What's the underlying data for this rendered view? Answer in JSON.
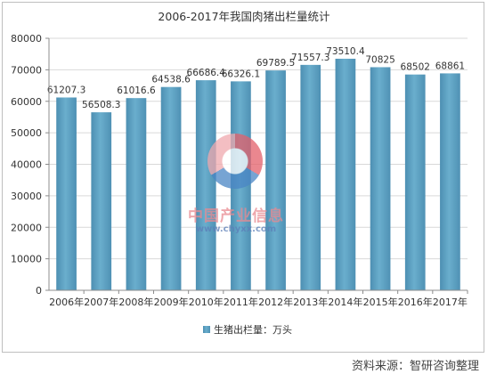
{
  "chart_data": {
    "type": "bar",
    "title": "2006-2017年我国肉猪出栏量统计",
    "categories": [
      "2006年",
      "2007年",
      "2008年",
      "2009年",
      "2010年",
      "2011年",
      "2012年",
      "2013年",
      "2014年",
      "2015年",
      "2016年",
      "2017年"
    ],
    "series": [
      {
        "name": "生猪出栏量：万头",
        "values": [
          61207.3,
          56508.3,
          61016.6,
          64538.6,
          66686.4,
          66326.1,
          69789.5,
          71557.3,
          73510.4,
          70825,
          68502,
          68861
        ],
        "labels": [
          "61207.3",
          "56508.3",
          "61016.6",
          "64538.6",
          "66686.4",
          "66326.1",
          "69789.5",
          "71557.3",
          "73510.4",
          "70825",
          "68502",
          "68861"
        ],
        "color": "#5b9fc0"
      }
    ],
    "ylim": [
      0,
      80000
    ],
    "yticks": [
      "0",
      "10000",
      "20000",
      "30000",
      "40000",
      "50000",
      "60000",
      "70000",
      "80000"
    ],
    "grid": true,
    "legend": "bottom"
  },
  "footer": {
    "source": "资料来源：智研咨询整理"
  },
  "watermark": {
    "name": "中国产业信息",
    "url": "www.chyxx.com"
  }
}
